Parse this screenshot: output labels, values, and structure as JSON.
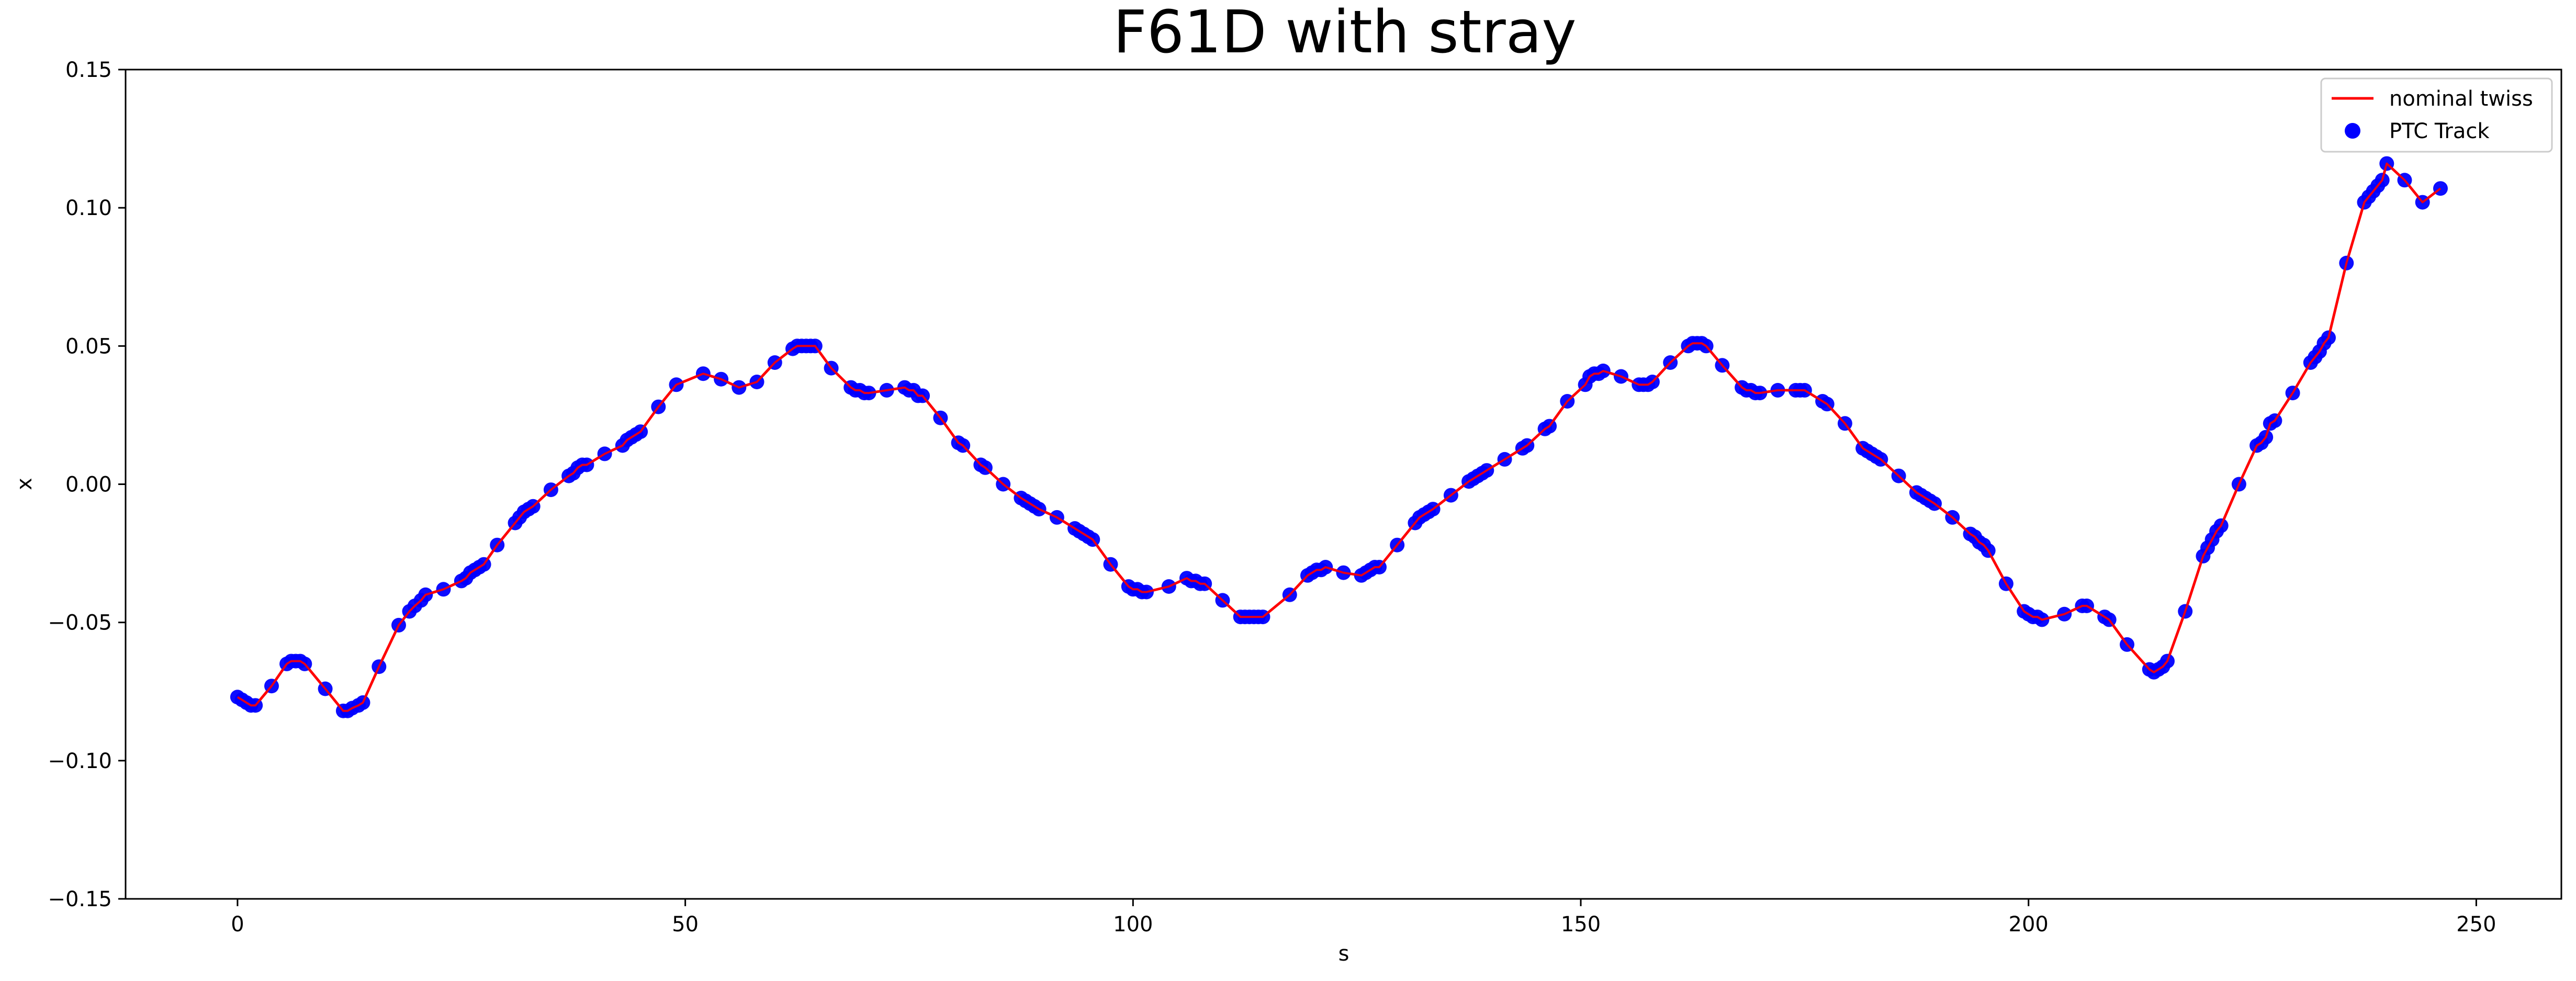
{
  "chart_data": {
    "type": "line",
    "title": "F61D with stray",
    "xlabel": "s",
    "ylabel": "x",
    "xlim": [
      -12.5,
      259.5
    ],
    "ylim": [
      -0.15,
      0.15
    ],
    "x_ticks": [
      0,
      50,
      100,
      150,
      200,
      250
    ],
    "y_ticks": [
      -0.15,
      -0.1,
      -0.05,
      0.0,
      0.05,
      0.1,
      0.15
    ],
    "x_tick_labels": [
      "0",
      "50",
      "100",
      "150",
      "200",
      "250"
    ],
    "y_tick_labels": [
      "−0.15",
      "−0.10",
      "−0.05",
      "0.00",
      "0.05",
      "0.10",
      "0.15"
    ],
    "grid": false,
    "legend": {
      "location": "top-right",
      "entries": [
        "nominal twiss",
        "PTC Track"
      ]
    },
    "colors": {
      "line": "#ff0000",
      "marker": "#0000ff"
    },
    "series": [
      {
        "name": "nominal twiss",
        "kind": "line",
        "x": [
          0,
          0.5,
          1.0,
          1.5,
          2.0,
          3.8,
          5.5,
          6.0,
          6.5,
          7.0,
          7.5,
          9.8,
          11.8,
          12.3,
          12.8,
          13.5,
          14.0,
          15.8,
          18.0,
          19.2,
          19.8,
          20.5,
          21.0,
          23.0,
          25.0,
          25.5,
          26.0,
          26.5,
          27.0,
          27.5,
          29.0,
          31.0,
          31.5,
          32.0,
          32.5,
          33.0,
          35.0,
          37.0,
          37.5,
          38.0,
          38.5,
          39.0,
          41.0,
          43.0,
          43.5,
          44.0,
          44.5,
          45.0,
          47.0,
          49.0,
          52.0,
          54.0,
          56.0,
          58.0,
          60.0,
          62.0,
          62.5,
          63.0,
          63.5,
          64.0,
          64.5,
          66.3,
          68.5,
          69.0,
          69.5,
          70.0,
          70.5,
          72.5,
          74.5,
          75.0,
          75.5,
          76.0,
          76.5,
          78.5,
          80.5,
          81.0,
          83.0,
          83.5,
          85.5,
          87.5,
          88.0,
          88.5,
          89.0,
          89.5,
          91.5,
          93.5,
          94.0,
          94.5,
          95.0,
          95.5,
          97.5,
          99.5,
          100.0,
          100.5,
          101.0,
          101.5,
          104.0,
          106.0,
          106.5,
          107.0,
          107.5,
          108.0,
          110.0,
          112.0,
          112.5,
          113.0,
          113.5,
          114.0,
          114.5,
          117.5,
          119.5,
          120.0,
          120.5,
          121.0,
          121.5,
          123.5,
          125.5,
          126.0,
          126.5,
          127.0,
          127.5,
          129.5,
          131.5,
          132.0,
          132.5,
          133.0,
          133.5,
          135.5,
          137.5,
          138.0,
          138.5,
          139.0,
          139.5,
          141.5,
          143.5,
          144.0,
          146.0,
          146.5,
          148.5,
          150.5,
          151.0,
          151.5,
          152.0,
          152.5,
          154.5,
          156.5,
          157.0,
          157.5,
          158.0,
          160.0,
          162.0,
          162.5,
          163.0,
          163.5,
          164.0,
          165.8,
          168.0,
          168.5,
          169.0,
          169.5,
          170.0,
          172.0,
          174.0,
          174.5,
          175.0,
          177.0,
          177.5,
          179.5,
          181.5,
          182.0,
          182.5,
          183.0,
          183.5,
          185.5,
          187.5,
          188.0,
          188.5,
          189.0,
          189.5,
          191.5,
          193.5,
          194.0,
          194.5,
          195.0,
          195.5,
          197.5,
          199.5,
          200.0,
          200.5,
          201.0,
          201.5,
          204.0,
          206.0,
          206.5,
          208.5,
          209.0,
          211.0,
          213.5,
          214.0,
          214.5,
          215.0,
          215.5,
          217.5,
          219.5,
          220.0,
          220.5,
          221.0,
          221.5,
          223.5,
          225.5,
          226.0,
          226.5,
          227.0,
          227.5,
          229.5,
          231.5,
          232.0,
          232.5,
          233.0,
          233.5,
          235.5,
          237.5,
          238.0,
          238.5,
          239.0,
          239.5,
          240.0,
          242.0,
          244.0,
          246.0
        ],
        "y": [
          -0.077,
          -0.078,
          -0.079,
          -0.08,
          -0.08,
          -0.073,
          -0.065,
          -0.064,
          -0.064,
          -0.064,
          -0.065,
          -0.074,
          -0.082,
          -0.082,
          -0.081,
          -0.08,
          -0.079,
          -0.066,
          -0.051,
          -0.046,
          -0.044,
          -0.042,
          -0.04,
          -0.038,
          -0.035,
          -0.034,
          -0.032,
          -0.031,
          -0.03,
          -0.029,
          -0.022,
          -0.014,
          -0.012,
          -0.01,
          -0.009,
          -0.008,
          -0.002,
          0.003,
          0.004,
          0.006,
          0.007,
          0.007,
          0.011,
          0.014,
          0.016,
          0.017,
          0.018,
          0.019,
          0.028,
          0.036,
          0.04,
          0.038,
          0.035,
          0.037,
          0.044,
          0.049,
          0.05,
          0.05,
          0.05,
          0.05,
          0.05,
          0.042,
          0.035,
          0.034,
          0.034,
          0.033,
          0.033,
          0.034,
          0.035,
          0.034,
          0.034,
          0.032,
          0.032,
          0.024,
          0.015,
          0.014,
          0.007,
          0.006,
          0.0,
          -0.005,
          -0.006,
          -0.007,
          -0.008,
          -0.009,
          -0.012,
          -0.016,
          -0.017,
          -0.018,
          -0.019,
          -0.02,
          -0.029,
          -0.037,
          -0.038,
          -0.038,
          -0.039,
          -0.039,
          -0.037,
          -0.034,
          -0.035,
          -0.035,
          -0.036,
          -0.036,
          -0.042,
          -0.048,
          -0.048,
          -0.048,
          -0.048,
          -0.048,
          -0.048,
          -0.04,
          -0.033,
          -0.032,
          -0.031,
          -0.031,
          -0.03,
          -0.032,
          -0.033,
          -0.032,
          -0.031,
          -0.03,
          -0.03,
          -0.022,
          -0.014,
          -0.012,
          -0.011,
          -0.01,
          -0.009,
          -0.004,
          0.001,
          0.002,
          0.003,
          0.004,
          0.005,
          0.009,
          0.013,
          0.014,
          0.02,
          0.021,
          0.03,
          0.036,
          0.039,
          0.04,
          0.04,
          0.041,
          0.039,
          0.036,
          0.036,
          0.036,
          0.037,
          0.044,
          0.05,
          0.051,
          0.051,
          0.051,
          0.05,
          0.043,
          0.035,
          0.034,
          0.034,
          0.033,
          0.033,
          0.034,
          0.034,
          0.034,
          0.034,
          0.03,
          0.029,
          0.022,
          0.013,
          0.012,
          0.011,
          0.01,
          0.009,
          0.003,
          -0.003,
          -0.004,
          -0.005,
          -0.006,
          -0.007,
          -0.012,
          -0.018,
          -0.019,
          -0.021,
          -0.022,
          -0.024,
          -0.036,
          -0.046,
          -0.047,
          -0.048,
          -0.048,
          -0.049,
          -0.047,
          -0.044,
          -0.044,
          -0.048,
          -0.049,
          -0.058,
          -0.067,
          -0.068,
          -0.067,
          -0.066,
          -0.064,
          -0.046,
          -0.026,
          -0.023,
          -0.02,
          -0.017,
          -0.015,
          0.0,
          0.014,
          0.015,
          0.017,
          0.022,
          0.023,
          0.033,
          0.044,
          0.046,
          0.048,
          0.051,
          0.053,
          0.08,
          0.102,
          0.104,
          0.106,
          0.108,
          0.11,
          0.116,
          0.11,
          0.102,
          0.107
        ]
      },
      {
        "name": "PTC Track",
        "kind": "scatter",
        "same_as": "nominal twiss"
      }
    ]
  }
}
